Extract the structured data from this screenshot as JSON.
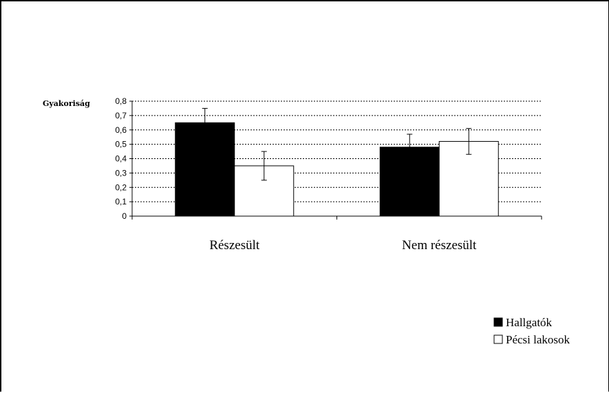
{
  "chart_data": {
    "type": "bar",
    "ylabel": "Gyakoriság",
    "xlabel": "",
    "title": "",
    "categories": [
      "Részesült",
      "Nem részesült"
    ],
    "series": [
      {
        "name": "Hallgatók",
        "color": "#000000",
        "values": [
          0.65,
          0.48
        ],
        "error": [
          0.1,
          0.09
        ]
      },
      {
        "name": "Pécsi lakosok",
        "color": "#ffffff",
        "values": [
          0.35,
          0.52
        ],
        "error": [
          0.1,
          0.09
        ]
      }
    ],
    "ylim": [
      0,
      0.8
    ],
    "yticks": [
      "0",
      "0,1",
      "0,2",
      "0,3",
      "0,4",
      "0,5",
      "0,6",
      "0,7",
      "0,8"
    ],
    "grid": true,
    "legend_position": "bottom-right"
  }
}
